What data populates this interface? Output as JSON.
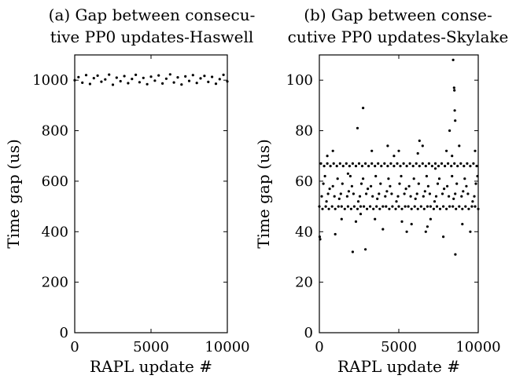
{
  "chart_data": [
    {
      "type": "scatter",
      "title_lines": [
        "(a) Gap between consecu-",
        "tive PP0 updates-Haswell"
      ],
      "xlabel": "RAPL update #",
      "ylabel": "Time gap (us)",
      "xlim": [
        0,
        10000
      ],
      "ylim": [
        0,
        1100
      ],
      "xticks": [
        0,
        5000,
        10000
      ],
      "yticks": [
        0,
        200,
        400,
        600,
        800,
        1000
      ],
      "xtick_labels": [
        "0",
        "5000",
        "10000"
      ],
      "ytick_labels": [
        "0",
        "200",
        "400",
        "600",
        "800",
        "1000"
      ],
      "grid": false,
      "series": [
        {
          "points": [
            [
              0,
              1000
            ],
            [
              250,
              1012
            ],
            [
              500,
              990
            ],
            [
              750,
              1020
            ],
            [
              1000,
              985
            ],
            [
              1250,
              1008
            ],
            [
              1500,
              1018
            ],
            [
              1750,
              994
            ],
            [
              2000,
              1003
            ],
            [
              2250,
              1022
            ],
            [
              2500,
              982
            ],
            [
              2750,
              1010
            ],
            [
              3000,
              996
            ],
            [
              3250,
              1016
            ],
            [
              3500,
              988
            ],
            [
              3750,
              1005
            ],
            [
              4000,
              1021
            ],
            [
              4250,
              992
            ],
            [
              4500,
              1009
            ],
            [
              4750,
              984
            ],
            [
              5000,
              1014
            ],
            [
              5250,
              998
            ],
            [
              5500,
              1019
            ],
            [
              5750,
              987
            ],
            [
              6000,
              1006
            ],
            [
              6250,
              1023
            ],
            [
              6500,
              991
            ],
            [
              6750,
              1011
            ],
            [
              7000,
              983
            ],
            [
              7250,
              1015
            ],
            [
              7500,
              997
            ],
            [
              7750,
              1020
            ],
            [
              8000,
              989
            ],
            [
              8250,
              1007
            ],
            [
              8500,
              1017
            ],
            [
              8750,
              993
            ],
            [
              9000,
              1013
            ],
            [
              9250,
              986
            ],
            [
              9500,
              1004
            ],
            [
              9750,
              1021
            ],
            [
              10000,
              995
            ]
          ]
        }
      ]
    },
    {
      "type": "scatter",
      "title_lines": [
        "(b) Gap between conse-",
        "cutive PP0 updates-Skylake"
      ],
      "xlabel": "RAPL update #",
      "ylabel": "Time gap (us)",
      "xlim": [
        0,
        10000
      ],
      "ylim": [
        0,
        110
      ],
      "xticks": [
        0,
        5000,
        10000
      ],
      "yticks": [
        0,
        20,
        40,
        60,
        80,
        100
      ],
      "xtick_labels": [
        "0",
        "5000",
        "10000"
      ],
      "ytick_labels": [
        "0",
        "20",
        "40",
        "60",
        "80",
        "100"
      ],
      "grid": false,
      "series": [
        {
          "points": [
            [
              0,
              50
            ],
            [
              200,
              49
            ],
            [
              400,
              50
            ],
            [
              600,
              49
            ],
            [
              800,
              50
            ],
            [
              1000,
              49
            ],
            [
              1200,
              50
            ],
            [
              1400,
              50
            ],
            [
              1600,
              49
            ],
            [
              1800,
              50
            ],
            [
              2000,
              49
            ],
            [
              2200,
              50
            ],
            [
              2400,
              49
            ],
            [
              2600,
              50
            ],
            [
              2800,
              50
            ],
            [
              3000,
              49
            ],
            [
              3200,
              50
            ],
            [
              3400,
              49
            ],
            [
              3600,
              50
            ],
            [
              3800,
              49
            ],
            [
              4000,
              50
            ],
            [
              4200,
              50
            ],
            [
              4400,
              49
            ],
            [
              4600,
              50
            ],
            [
              4800,
              49
            ],
            [
              5000,
              50
            ],
            [
              5200,
              49
            ],
            [
              5400,
              50
            ],
            [
              5600,
              50
            ],
            [
              5800,
              49
            ],
            [
              6000,
              50
            ],
            [
              6200,
              49
            ],
            [
              6400,
              50
            ],
            [
              6600,
              49
            ],
            [
              6800,
              50
            ],
            [
              7000,
              50
            ],
            [
              7200,
              49
            ],
            [
              7400,
              50
            ],
            [
              7600,
              49
            ],
            [
              7800,
              50
            ],
            [
              8000,
              49
            ],
            [
              8200,
              50
            ],
            [
              8400,
              50
            ],
            [
              8600,
              49
            ],
            [
              8800,
              50
            ],
            [
              9000,
              49
            ],
            [
              9200,
              50
            ],
            [
              9400,
              49
            ],
            [
              9600,
              50
            ],
            [
              9800,
              50
            ],
            [
              10000,
              49
            ],
            [
              100,
              67
            ],
            [
              300,
              66
            ],
            [
              500,
              67
            ],
            [
              700,
              66
            ],
            [
              900,
              67
            ],
            [
              1100,
              66
            ],
            [
              1300,
              67
            ],
            [
              1500,
              66
            ],
            [
              1700,
              67
            ],
            [
              1900,
              66
            ],
            [
              2100,
              67
            ],
            [
              2300,
              66
            ],
            [
              2500,
              67
            ],
            [
              2700,
              66
            ],
            [
              2900,
              67
            ],
            [
              3100,
              66
            ],
            [
              3300,
              67
            ],
            [
              3500,
              66
            ],
            [
              3700,
              67
            ],
            [
              3900,
              66
            ],
            [
              4100,
              67
            ],
            [
              4300,
              66
            ],
            [
              4500,
              67
            ],
            [
              4700,
              66
            ],
            [
              4900,
              67
            ],
            [
              5100,
              66
            ],
            [
              5300,
              67
            ],
            [
              5500,
              66
            ],
            [
              5700,
              67
            ],
            [
              5900,
              66
            ],
            [
              6100,
              67
            ],
            [
              6300,
              66
            ],
            [
              6500,
              67
            ],
            [
              6700,
              66
            ],
            [
              6900,
              67
            ],
            [
              7100,
              66
            ],
            [
              7300,
              67
            ],
            [
              7500,
              66
            ],
            [
              7700,
              67
            ],
            [
              7900,
              66
            ],
            [
              8100,
              67
            ],
            [
              8300,
              66
            ],
            [
              8500,
              67
            ],
            [
              8700,
              66
            ],
            [
              8900,
              67
            ],
            [
              9100,
              66
            ],
            [
              9300,
              67
            ],
            [
              9500,
              66
            ],
            [
              9700,
              67
            ],
            [
              9900,
              66
            ],
            [
              150,
              54
            ],
            [
              550,
              55
            ],
            [
              950,
              54
            ],
            [
              1350,
              55
            ],
            [
              1750,
              54
            ],
            [
              2150,
              55
            ],
            [
              2550,
              54
            ],
            [
              2950,
              55
            ],
            [
              3350,
              54
            ],
            [
              3750,
              55
            ],
            [
              4150,
              54
            ],
            [
              4550,
              55
            ],
            [
              4950,
              54
            ],
            [
              5350,
              55
            ],
            [
              5750,
              54
            ],
            [
              6150,
              55
            ],
            [
              6550,
              54
            ],
            [
              6950,
              55
            ],
            [
              7350,
              54
            ],
            [
              7750,
              55
            ],
            [
              8150,
              54
            ],
            [
              8550,
              55
            ],
            [
              8950,
              54
            ],
            [
              9350,
              55
            ],
            [
              9750,
              54
            ],
            [
              250,
              59
            ],
            [
              850,
              58
            ],
            [
              1450,
              59
            ],
            [
              2050,
              58
            ],
            [
              2650,
              59
            ],
            [
              3250,
              58
            ],
            [
              3850,
              59
            ],
            [
              4450,
              58
            ],
            [
              5050,
              59
            ],
            [
              5650,
              58
            ],
            [
              6250,
              59
            ],
            [
              6850,
              58
            ],
            [
              7450,
              59
            ],
            [
              8050,
              58
            ],
            [
              8650,
              59
            ],
            [
              9250,
              58
            ],
            [
              9850,
              59
            ],
            [
              350,
              62
            ],
            [
              1150,
              61
            ],
            [
              1950,
              62
            ],
            [
              2750,
              61
            ],
            [
              3550,
              62
            ],
            [
              4350,
              61
            ],
            [
              5150,
              62
            ],
            [
              5950,
              61
            ],
            [
              6750,
              62
            ],
            [
              7550,
              61
            ],
            [
              8350,
              62
            ],
            [
              9150,
              61
            ],
            [
              9950,
              62
            ],
            [
              450,
              52
            ],
            [
              1250,
              53
            ],
            [
              2450,
              52
            ],
            [
              3650,
              53
            ],
            [
              4850,
              52
            ],
            [
              6050,
              53
            ],
            [
              7250,
              52
            ],
            [
              8450,
              53
            ],
            [
              9650,
              52
            ],
            [
              650,
              57
            ],
            [
              1850,
              56
            ],
            [
              3050,
              57
            ],
            [
              4250,
              56
            ],
            [
              5450,
              57
            ],
            [
              6650,
              56
            ],
            [
              7850,
              57
            ],
            [
              9050,
              56
            ],
            [
              20,
              38
            ],
            [
              50,
              37
            ],
            [
              500,
              70
            ],
            [
              850,
              72
            ],
            [
              1000,
              39
            ],
            [
              1400,
              45
            ],
            [
              1800,
              63
            ],
            [
              2100,
              32
            ],
            [
              2300,
              44
            ],
            [
              2400,
              81
            ],
            [
              2600,
              47
            ],
            [
              2750,
              89
            ],
            [
              2900,
              33
            ],
            [
              3300,
              72
            ],
            [
              3500,
              45
            ],
            [
              4000,
              41
            ],
            [
              4300,
              74
            ],
            [
              4700,
              70
            ],
            [
              5000,
              72
            ],
            [
              5200,
              44
            ],
            [
              5500,
              40
            ],
            [
              5800,
              43
            ],
            [
              6200,
              71
            ],
            [
              6300,
              76
            ],
            [
              6500,
              74
            ],
            [
              6700,
              40
            ],
            [
              6800,
              42
            ],
            [
              7000,
              45
            ],
            [
              7300,
              65
            ],
            [
              7800,
              38
            ],
            [
              8000,
              72
            ],
            [
              8200,
              80
            ],
            [
              8350,
              70
            ],
            [
              8420,
              108
            ],
            [
              8480,
              97
            ],
            [
              8500,
              96
            ],
            [
              8520,
              88
            ],
            [
              8550,
              84
            ],
            [
              8560,
              31
            ],
            [
              8800,
              74
            ],
            [
              9000,
              43
            ],
            [
              9500,
              40
            ],
            [
              9800,
              72
            ]
          ]
        }
      ]
    }
  ]
}
